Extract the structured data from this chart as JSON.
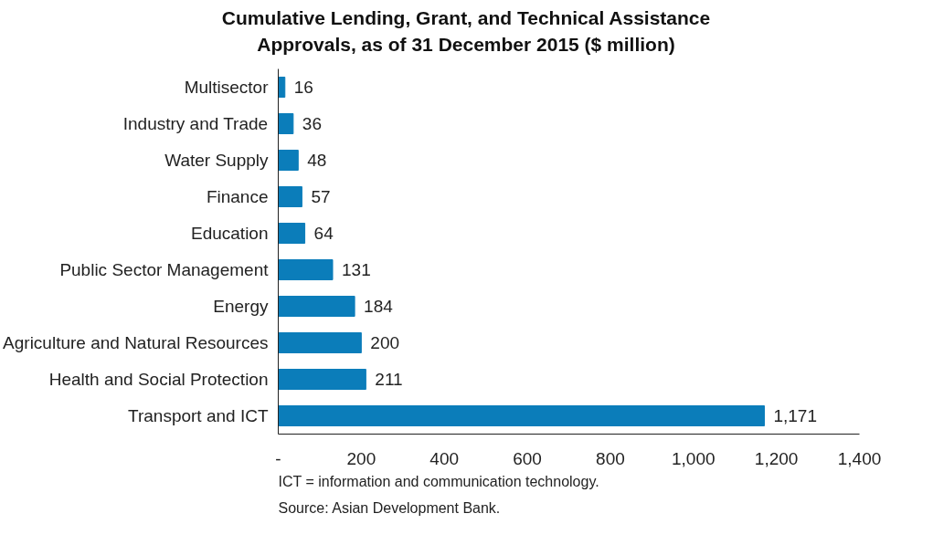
{
  "chart_data": {
    "type": "bar",
    "orientation": "horizontal",
    "title": "Cumulative Lending, Grant, and Technical Assistance Approvals, as of 31 December 2015 ($ million)",
    "categories": [
      "Multisector",
      "Industry and Trade",
      "Water Supply",
      "Finance",
      "Education",
      "Public Sector Management",
      "Energy",
      "Agriculture and Natural Resources",
      "Health and Social Protection",
      "Transport and ICT"
    ],
    "values": [
      16,
      36,
      48,
      57,
      64,
      131,
      184,
      200,
      211,
      1171
    ],
    "value_labels": [
      "16",
      "36",
      "48",
      "57",
      "64",
      "131",
      "184",
      "200",
      "211",
      "1,171"
    ],
    "color": "#0b7dba",
    "xlim": [
      0,
      1400
    ],
    "xticks": [
      {
        "value": 0,
        "label": "-"
      },
      200,
      400,
      600,
      800,
      {
        "value": 1000,
        "label": "1,000"
      },
      {
        "value": 1200,
        "label": "1,200"
      },
      {
        "value": 1400,
        "label": "1,400"
      }
    ],
    "grid": false,
    "annotations": [
      "ICT = information and communication technology.",
      "Source: Asian Development Bank."
    ]
  }
}
